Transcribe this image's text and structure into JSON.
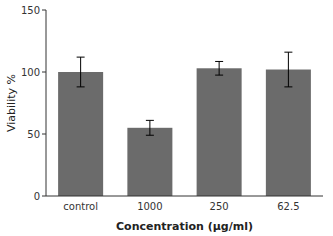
{
  "chart_data": {
    "type": "bar",
    "categories": [
      "control",
      "1000",
      "250",
      "62.5"
    ],
    "values": [
      100.0,
      55.0,
      103.0,
      102.0
    ],
    "errors": [
      12.0,
      6.0,
      5.5,
      14.0
    ],
    "color": "#6b6b6b",
    "xlabel": "Concentration (μg/ml)",
    "ylabel": "Viability %",
    "ylim": [
      0,
      150
    ],
    "yticks": [
      0,
      50,
      100,
      150
    ],
    "grid": false
  }
}
